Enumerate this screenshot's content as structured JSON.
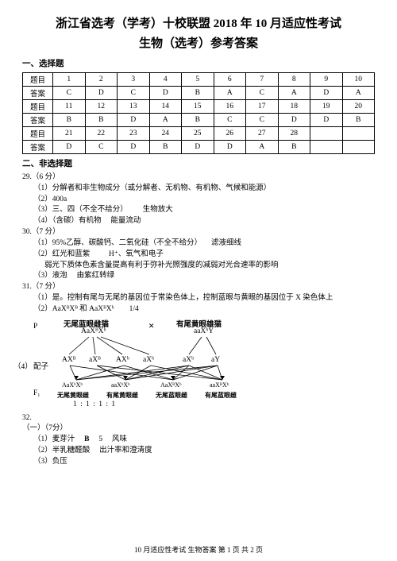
{
  "header": {
    "line1": "浙江省选考（学考）十校联盟 2018 年 10 月适应性考试",
    "line2": "生物（选考）参考答案"
  },
  "section1": {
    "title": "一、选择题",
    "rows": [
      {
        "label": "题目",
        "cells": [
          "1",
          "2",
          "3",
          "4",
          "5",
          "6",
          "7",
          "8",
          "9",
          "10"
        ]
      },
      {
        "label": "答案",
        "cells": [
          "C",
          "D",
          "C",
          "D",
          "B",
          "A",
          "C",
          "A",
          "D",
          "A"
        ]
      },
      {
        "label": "题目",
        "cells": [
          "11",
          "12",
          "13",
          "14",
          "15",
          "16",
          "17",
          "18",
          "19",
          "20"
        ]
      },
      {
        "label": "答案",
        "cells": [
          "B",
          "B",
          "D",
          "A",
          "B",
          "C",
          "C",
          "D",
          "D",
          "B"
        ]
      },
      {
        "label": "题目",
        "cells": [
          "21",
          "22",
          "23",
          "24",
          "25",
          "26",
          "27",
          "28",
          "",
          ""
        ]
      },
      {
        "label": "答案",
        "cells": [
          "D",
          "C",
          "D",
          "B",
          "D",
          "D",
          "A",
          "B",
          "",
          ""
        ]
      }
    ]
  },
  "section2": {
    "title": "二、非选择题",
    "q29": {
      "head": "29.（6 分）",
      "p1": "（1）分解者和非生物成分（或分解者、无机物、有机物、气候和能源）",
      "p2": "（2）400a",
      "p3a": "（3）三、四（不全不给分）",
      "p3b": "生物放大",
      "p4a": "（4）（含碳）有机物",
      "p4b": "能量流动"
    },
    "q30": {
      "head": "30.（7 分）",
      "p1a": "（1）95%乙醇、碳酸钙、二氧化硅（不全不给分）",
      "p1b": "滤液细线",
      "p2a": "（2）红光和蓝紫",
      "p2b": "H⁺、氧气和电子",
      "p2c": "弱光下质体色素含量提高有利于弥补光照强度的减弱对光合速率的影响",
      "p3a": "（3）液泡",
      "p3b": "由紫红转绿"
    },
    "q31": {
      "head": "31.（7 分）",
      "p1": "（1）是。控制有尾与无尾的基因位于常染色体上，控制蓝眼与黄眼的基因位于 X 染色体上",
      "p2a": "（2）AaXᴮXᴮ 和 AaXᴮXᵇ",
      "p2b": "1/4",
      "p4label": "（4）",
      "diagram": {
        "P": "P",
        "female_title": "无尾蓝眼雌猫",
        "female_geno": "AaXᴮXᵇ",
        "cross": "×",
        "male_title": "有尾黄眼雄猫",
        "male_geno": "aaXᵇY",
        "gametes_label": "配子",
        "g_f1": "AXᴮ",
        "g_f2": "aXᴮ",
        "g_f3": "AXᵇ",
        "g_f4": "aXᵇ",
        "g_m1": "aXᵇ",
        "g_m2": "aY",
        "F1": "F₁",
        "off1": "无尾黄眼雌",
        "off2": "有尾黄眼雌",
        "off3": "无尾蓝眼雌",
        "off4": "有尾蓝眼雌",
        "off1g": "AaXᵇXᵇ",
        "off2g": "aaXᵇXᵇ",
        "off3g": "AaXᴮXᵇ",
        "off4g": "aaXᴮXᵇ",
        "ratio": "1   :    1   :    1   :    1"
      }
    },
    "q32": {
      "head": "32.",
      "part1head": "（一）（7分）",
      "p1a": "（1）麦芽汁",
      "p1b": "B",
      "p1c": "5",
      "p1d": "风味",
      "p2a": "（2）半乳糖醛酸",
      "p2b": "出汁率和澄清度",
      "p3": "（3）负压"
    }
  },
  "footer": "10 月适应性考试   生物答案   第 1 页 共 2 页"
}
